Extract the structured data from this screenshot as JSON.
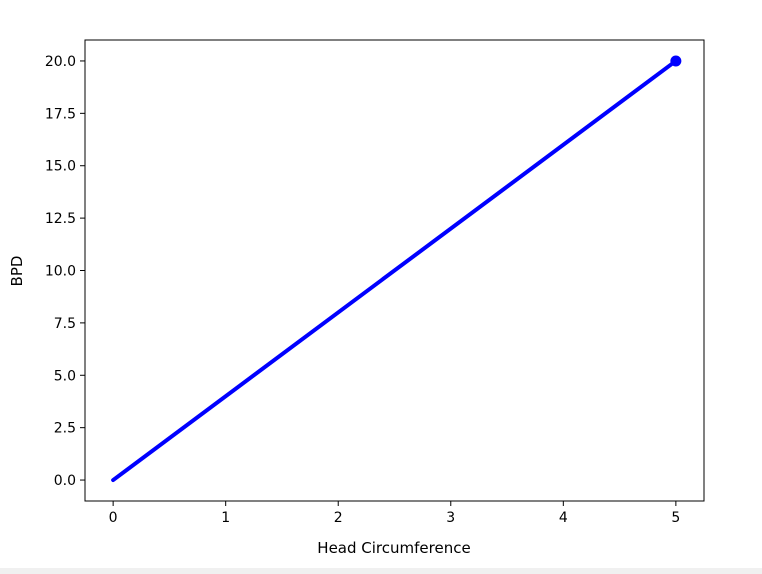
{
  "chart_data": {
    "type": "line",
    "title": "",
    "xlabel": "Head Circumference",
    "ylabel": "BPD",
    "xlim": [
      -0.25,
      5.25
    ],
    "ylim": [
      -1.0,
      21.0
    ],
    "xticks": [
      0,
      1,
      2,
      3,
      4,
      5
    ],
    "xtick_labels": [
      "0",
      "1",
      "2",
      "3",
      "4",
      "5"
    ],
    "yticks": [
      0,
      2.5,
      5,
      7.5,
      10,
      12.5,
      15,
      17.5,
      20
    ],
    "ytick_labels": [
      "0.0",
      "2.5",
      "5.0",
      "7.5",
      "10.0",
      "12.5",
      "15.0",
      "17.5",
      "20.0"
    ],
    "grid": false,
    "series": [
      {
        "x": [
          0,
          5
        ],
        "y": [
          0,
          20
        ],
        "color": "#0000ff",
        "marker_at_end": true
      }
    ]
  }
}
